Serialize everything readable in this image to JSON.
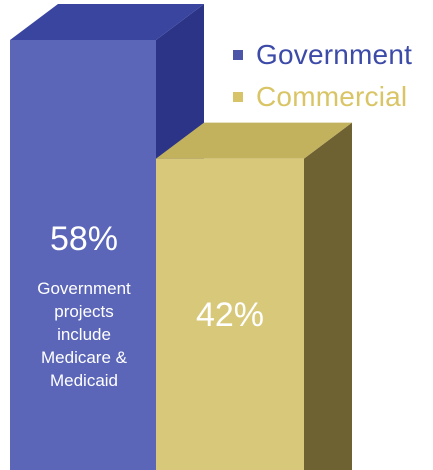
{
  "chart_data": {
    "type": "bar",
    "categories": [
      "Government",
      "Commercial"
    ],
    "values": [
      58,
      42
    ],
    "value_labels": [
      "58%",
      "42%"
    ],
    "unit": "%",
    "legend": [
      {
        "label": "Government",
        "color": "#4b56a8"
      },
      {
        "label": "Commercial",
        "color": "#d8c468"
      }
    ],
    "legend_placement": "top-right",
    "annotation_lines": [
      "Government",
      "projects",
      "include",
      "Medicare &",
      "Medicaid"
    ],
    "style": "3d",
    "grid": false
  },
  "colors": {
    "government_front": "#5b66b8",
    "government_side": "#2b3486",
    "government_top": "#3a45a0",
    "commercial_front": "#d8c97a",
    "commercial_side": "#6e6232",
    "commercial_top": "#c2b25e",
    "government_legend_text": "#3c4aa8",
    "commercial_legend_text": "#d9c566"
  }
}
